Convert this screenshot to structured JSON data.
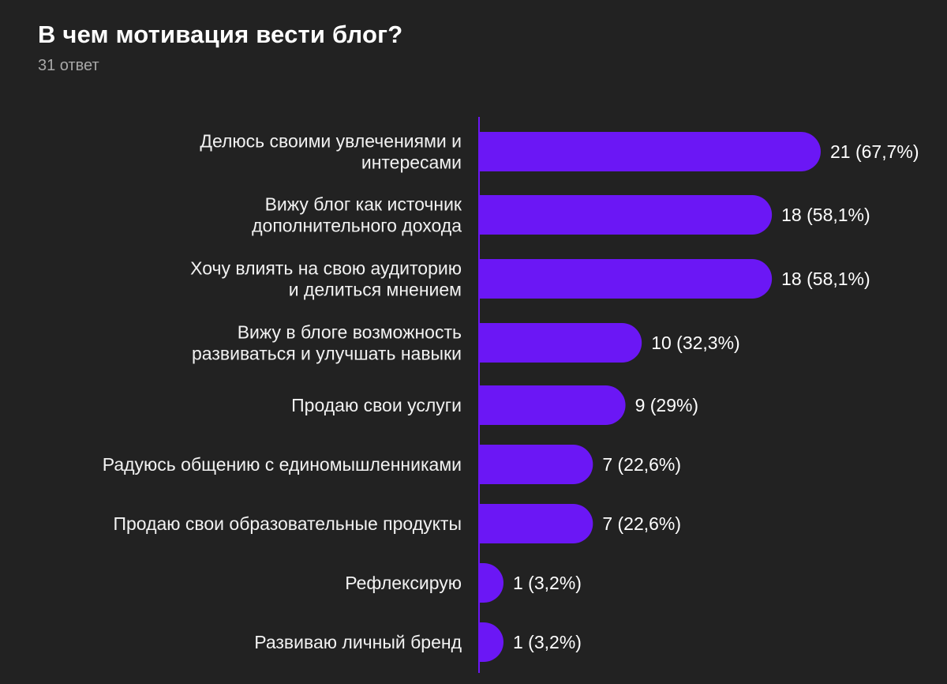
{
  "chart_data": {
    "type": "bar",
    "orientation": "horizontal",
    "title": "В чем мотивация вести блог?",
    "subtitle": "31 ответ",
    "categories": [
      [
        "Делюсь своими увлечениями и",
        "интересами"
      ],
      [
        "Вижу блог как источник",
        "дополнительного дохода"
      ],
      [
        "Хочу влиять на свою аудиторию",
        "и делиться мнением"
      ],
      [
        "Вижу в блоге возможность",
        "развиваться и улучшать навыки"
      ],
      [
        "Продаю свои услуги"
      ],
      [
        "Радуюсь общению с единомышленниками"
      ],
      [
        "Продаю свои образовательные продукты"
      ],
      [
        "Рефлексирую"
      ],
      [
        "Развиваю личный бренд"
      ]
    ],
    "values": [
      21,
      18,
      18,
      10,
      9,
      7,
      7,
      1,
      1
    ],
    "value_labels": [
      "21 (67,7%)",
      "18 (58,1%)",
      "18 (58,1%)",
      "10 (32,3%)",
      "9 (29%)",
      "7 (22,6%)",
      "7 (22,6%)",
      "1 (3,2%)",
      "1 (3,2%)"
    ],
    "xlim": [
      0,
      21
    ],
    "bar_color": "#6b17f5",
    "axis_color": "#6b17f5",
    "background": "#222222"
  }
}
